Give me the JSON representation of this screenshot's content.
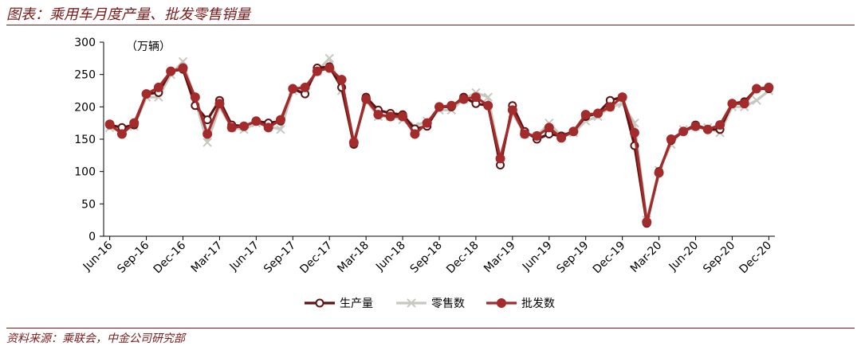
{
  "header": {
    "title": "图表：乘用车月度产量、批发零售销量"
  },
  "footer": {
    "source": "资料来源：乘联会，中金公司研究部"
  },
  "colors": {
    "title": "#7a1a1a",
    "production": "#5e1212",
    "retail": "#c8c8c0",
    "wholesale": "#a32b2b"
  },
  "chart_data": {
    "type": "line",
    "unit_label": "（万辆）",
    "ylim": [
      0,
      300
    ],
    "yticks": [
      0,
      50,
      100,
      150,
      200,
      250,
      300
    ],
    "grid": false,
    "legend_position": "bottom",
    "x_tick_labels": [
      "Jun-16",
      "Sep-16",
      "Dec-16",
      "Mar-17",
      "Jun-17",
      "Sep-17",
      "Dec-17",
      "Mar-18",
      "Jun-18",
      "Sep-18",
      "Dec-18",
      "Mar-19",
      "Jun-19",
      "Sep-19",
      "Dec-19",
      "Mar-20",
      "Jun-20",
      "Sep-20",
      "Dec-20"
    ],
    "x": [
      "Jun-16",
      "Jul-16",
      "Aug-16",
      "Sep-16",
      "Oct-16",
      "Nov-16",
      "Dec-16",
      "Jan-17",
      "Feb-17",
      "Mar-17",
      "Apr-17",
      "May-17",
      "Jun-17",
      "Jul-17",
      "Aug-17",
      "Sep-17",
      "Oct-17",
      "Nov-17",
      "Dec-17",
      "Jan-18",
      "Feb-18",
      "Mar-18",
      "Apr-18",
      "May-18",
      "Jun-18",
      "Jul-18",
      "Aug-18",
      "Sep-18",
      "Oct-18",
      "Nov-18",
      "Dec-18",
      "Jan-19",
      "Feb-19",
      "Mar-19",
      "Apr-19",
      "May-19",
      "Jun-19",
      "Jul-19",
      "Aug-19",
      "Sep-19",
      "Oct-19",
      "Nov-19",
      "Dec-19",
      "Jan-20",
      "Feb-20",
      "Mar-20",
      "Apr-20",
      "May-20",
      "Jun-20",
      "Jul-20",
      "Aug-20",
      "Sep-20",
      "Oct-20",
      "Nov-20",
      "Dec-20"
    ],
    "series": [
      {
        "name": "生产量",
        "style": "hollow-marker",
        "values": [
          172,
          168,
          172,
          220,
          222,
          255,
          258,
          202,
          180,
          210,
          172,
          170,
          178,
          175,
          178,
          228,
          220,
          260,
          262,
          230,
          142,
          215,
          195,
          190,
          188,
          166,
          170,
          200,
          200,
          215,
          205,
          202,
          110,
          202,
          162,
          150,
          158,
          155,
          162,
          185,
          190,
          210,
          215,
          140,
          20,
          100,
          148,
          162,
          172,
          165,
          165,
          205,
          208,
          228,
          228
        ]
      },
      {
        "name": "零售数",
        "style": "cross-marker",
        "values": [
          168,
          162,
          170,
          215,
          215,
          250,
          270,
          210,
          145,
          200,
          168,
          165,
          175,
          170,
          165,
          225,
          225,
          255,
          275,
          225,
          145,
          210,
          185,
          185,
          180,
          170,
          178,
          195,
          195,
          212,
          222,
          215,
          122,
          190,
          158,
          155,
          175,
          155,
          160,
          178,
          185,
          200,
          205,
          175,
          25,
          102,
          142,
          165,
          170,
          168,
          160,
          200,
          200,
          210,
          225
        ]
      },
      {
        "name": "批发数",
        "style": "filled-marker",
        "values": [
          173,
          158,
          175,
          220,
          230,
          255,
          260,
          215,
          158,
          205,
          168,
          170,
          178,
          168,
          180,
          228,
          230,
          255,
          260,
          242,
          145,
          212,
          188,
          185,
          185,
          158,
          175,
          200,
          202,
          212,
          215,
          202,
          120,
          195,
          158,
          155,
          168,
          152,
          162,
          188,
          190,
          200,
          215,
          160,
          22,
          98,
          150,
          162,
          170,
          165,
          172,
          205,
          205,
          228,
          230
        ]
      }
    ]
  }
}
